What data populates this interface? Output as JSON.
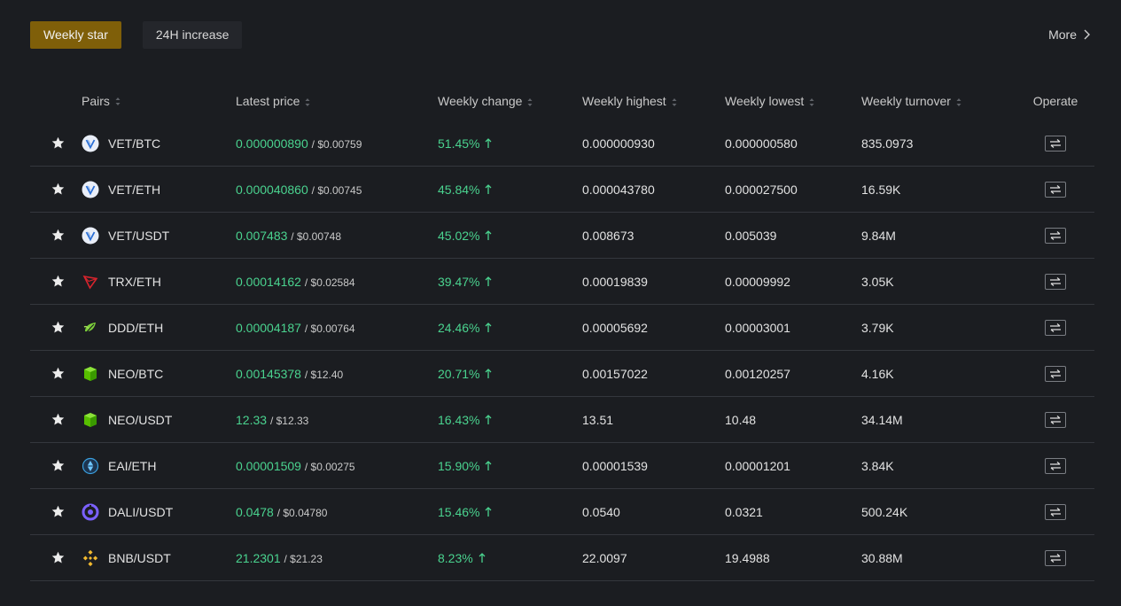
{
  "tabs": [
    {
      "label": "Weekly star",
      "active": true
    },
    {
      "label": "24H increase",
      "active": false
    }
  ],
  "more_label": "More",
  "colors": {
    "accent": "#7f5f09",
    "positive": "#4ad38f",
    "background": "#1b1d21"
  },
  "columns": {
    "pairs": "Pairs",
    "latest_price": "Latest price",
    "weekly_change": "Weekly change",
    "weekly_highest": "Weekly highest",
    "weekly_lowest": "Weekly lowest",
    "weekly_turnover": "Weekly turnover",
    "operate": "Operate"
  },
  "rows": [
    {
      "icon": "vet-icon",
      "pair": "VET/BTC",
      "price": "0.000000890",
      "usd": "/ $0.00759",
      "change": "51.45%",
      "high": "0.000000930",
      "low": "0.000000580",
      "turnover": "835.0973"
    },
    {
      "icon": "vet-icon",
      "pair": "VET/ETH",
      "price": "0.000040860",
      "usd": "/ $0.00745",
      "change": "45.84%",
      "high": "0.000043780",
      "low": "0.000027500",
      "turnover": "16.59K"
    },
    {
      "icon": "vet-icon",
      "pair": "VET/USDT",
      "price": "0.007483",
      "usd": "/ $0.00748",
      "change": "45.02%",
      "high": "0.008673",
      "low": "0.005039",
      "turnover": "9.84M"
    },
    {
      "icon": "trx-icon",
      "pair": "TRX/ETH",
      "price": "0.00014162",
      "usd": "/ $0.02584",
      "change": "39.47%",
      "high": "0.00019839",
      "low": "0.00009992",
      "turnover": "3.05K"
    },
    {
      "icon": "ddd-icon",
      "pair": "DDD/ETH",
      "price": "0.00004187",
      "usd": "/ $0.00764",
      "change": "24.46%",
      "high": "0.00005692",
      "low": "0.00003001",
      "turnover": "3.79K"
    },
    {
      "icon": "neo-icon",
      "pair": "NEO/BTC",
      "price": "0.00145378",
      "usd": "/ $12.40",
      "change": "20.71%",
      "high": "0.00157022",
      "low": "0.00120257",
      "turnover": "4.16K"
    },
    {
      "icon": "neo-icon",
      "pair": "NEO/USDT",
      "price": "12.33",
      "usd": "/ $12.33",
      "change": "16.43%",
      "high": "13.51",
      "low": "10.48",
      "turnover": "34.14M"
    },
    {
      "icon": "eai-icon",
      "pair": "EAI/ETH",
      "price": "0.00001509",
      "usd": "/ $0.00275",
      "change": "15.90%",
      "high": "0.00001539",
      "low": "0.00001201",
      "turnover": "3.84K"
    },
    {
      "icon": "dali-icon",
      "pair": "DALI/USDT",
      "price": "0.0478",
      "usd": "/ $0.04780",
      "change": "15.46%",
      "high": "0.0540",
      "low": "0.0321",
      "turnover": "500.24K"
    },
    {
      "icon": "bnb-icon",
      "pair": "BNB/USDT",
      "price": "21.2301",
      "usd": "/ $21.23",
      "change": "8.23%",
      "high": "22.0097",
      "low": "19.4988",
      "turnover": "30.88M"
    }
  ]
}
